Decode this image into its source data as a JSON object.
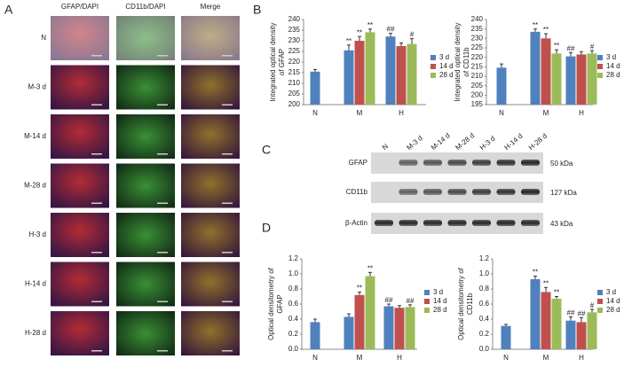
{
  "panels": {
    "a": "A",
    "b": "B",
    "c": "C",
    "d": "D"
  },
  "images": {
    "columns": [
      "GFAP/DAPI",
      "CD11b/DAPI",
      "Merge"
    ],
    "rows": [
      "N",
      "M-3 d",
      "M-14 d",
      "M-28 d",
      "H-3 d",
      "H-14 d",
      "H-28 d"
    ]
  },
  "blot": {
    "lanes": [
      "N",
      "M-3 d",
      "M-14 d",
      "M-28 d",
      "H-3 d",
      "H-14 d",
      "H-28 d"
    ],
    "rows": [
      "GFAP",
      "CD11b",
      "β-Actin"
    ],
    "sizes": [
      "50 kDa",
      "127 kDa",
      "43 kDa"
    ]
  },
  "chart_data": [
    {
      "type": "bar",
      "ylabel": [
        "Integrated optical density",
        "of GFAP"
      ],
      "categories": [
        "N",
        "M",
        "H"
      ],
      "ylim": [
        200,
        240
      ],
      "yticks": [
        200,
        205,
        210,
        215,
        220,
        225,
        230,
        235,
        240
      ],
      "series": [
        {
          "name": "3 d",
          "color": "#4f81bd",
          "values": [
            215.5,
            225.5,
            232
          ],
          "errors": [
            1,
            2.5,
            1.5
          ],
          "sig": [
            null,
            "**",
            "##"
          ]
        },
        {
          "name": "14 d",
          "color": "#c0504d",
          "values": [
            null,
            230,
            227.5
          ],
          "errors": [
            null,
            2,
            1.5
          ],
          "sig": [
            null,
            "**",
            null
          ]
        },
        {
          "name": "28 d",
          "color": "#9bbb59",
          "values": [
            null,
            234,
            228.5
          ],
          "errors": [
            null,
            1.5,
            2.5
          ],
          "sig": [
            null,
            "**",
            "#"
          ]
        }
      ]
    },
    {
      "type": "bar",
      "ylabel": [
        "Integrated optical density",
        "of CD11b"
      ],
      "categories": [
        "N",
        "M",
        "H"
      ],
      "ylim": [
        195,
        240
      ],
      "yticks": [
        195,
        200,
        205,
        210,
        215,
        220,
        225,
        230,
        235,
        240
      ],
      "series": [
        {
          "name": "3 d",
          "color": "#4f81bd",
          "values": [
            214.5,
            233.5,
            220.5
          ],
          "errors": [
            2,
            1.5,
            2
          ],
          "sig": [
            null,
            "**",
            "##"
          ]
        },
        {
          "name": "14 d",
          "color": "#c0504d",
          "values": [
            null,
            230,
            221.5
          ],
          "errors": [
            null,
            2.5,
            1.5
          ],
          "sig": [
            null,
            "**",
            null
          ]
        },
        {
          "name": "28 d",
          "color": "#9bbb59",
          "values": [
            null,
            222,
            222
          ],
          "errors": [
            null,
            2,
            1.5
          ],
          "sig": [
            null,
            "**",
            "#"
          ]
        }
      ]
    },
    {
      "type": "bar",
      "ylabel": [
        "Optical densitometry of",
        "GFAP"
      ],
      "categories": [
        "N",
        "M",
        "H"
      ],
      "ylim": [
        0,
        1.2
      ],
      "yticks": [
        {
          "value": 0,
          "label": "0.0"
        },
        0.2,
        0.4,
        0.6,
        0.8,
        {
          "value": 1,
          "label": "1.0"
        },
        1.2
      ],
      "series": [
        {
          "name": "3 d",
          "color": "#4f81bd",
          "values": [
            0.36,
            0.43,
            0.57
          ],
          "errors": [
            0.04,
            0.04,
            0.03
          ],
          "sig": [
            null,
            null,
            "##"
          ]
        },
        {
          "name": "14 d",
          "color": "#c0504d",
          "values": [
            null,
            0.72,
            0.55
          ],
          "errors": [
            null,
            0.04,
            0.03
          ],
          "sig": [
            null,
            "**",
            null
          ]
        },
        {
          "name": "28 d",
          "color": "#9bbb59",
          "values": [
            null,
            0.97,
            0.56
          ],
          "errors": [
            null,
            0.05,
            0.03
          ],
          "sig": [
            null,
            "**",
            "##"
          ]
        }
      ]
    },
    {
      "type": "bar",
      "ylabel": [
        "Optical densitometry of",
        "CD11b"
      ],
      "categories": [
        "N",
        "M",
        "H"
      ],
      "ylim": [
        0,
        1.2
      ],
      "yticks": [
        {
          "value": 0,
          "label": "0.0"
        },
        0.2,
        0.4,
        0.6,
        0.8,
        {
          "value": 1,
          "label": "1.0"
        },
        1.2
      ],
      "series": [
        {
          "name": "3 d",
          "color": "#4f81bd",
          "values": [
            0.31,
            0.93,
            0.38
          ],
          "errors": [
            0.02,
            0.04,
            0.05
          ],
          "sig": [
            null,
            "**",
            "##"
          ]
        },
        {
          "name": "14 d",
          "color": "#c0504d",
          "values": [
            null,
            0.76,
            0.36
          ],
          "errors": [
            null,
            0.06,
            0.06
          ],
          "sig": [
            null,
            "**",
            "##"
          ]
        },
        {
          "name": "28 d",
          "color": "#9bbb59",
          "values": [
            null,
            0.67,
            0.49
          ],
          "errors": [
            null,
            0.03,
            0.04
          ],
          "sig": [
            null,
            "**",
            "#"
          ]
        }
      ]
    }
  ]
}
